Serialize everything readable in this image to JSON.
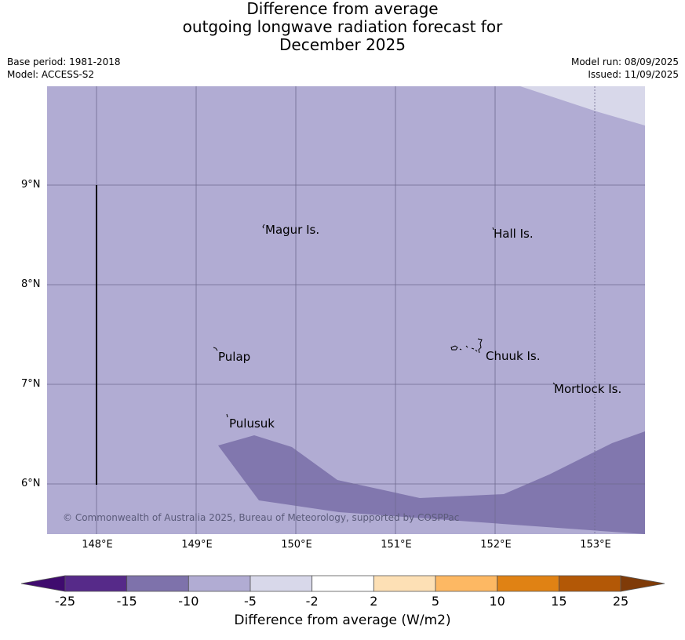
{
  "title": {
    "line1": "Difference from average",
    "line2": "outgoing longwave radiation forecast for",
    "line3": "December 2025"
  },
  "meta": {
    "base_period": "Base period: 1981-2018",
    "model": "Model: ACCESS-S2",
    "model_run": "Model run: 08/09/2025",
    "issued": "Issued: 11/09/2025"
  },
  "map": {
    "background_color": "#b1acd3",
    "lat_labels": [
      "9°N",
      "8°N",
      "7°N",
      "6°N"
    ],
    "lon_labels": [
      "148°E",
      "149°E",
      "150°E",
      "151°E",
      "152°E",
      "153°E"
    ],
    "places": [
      "Magur Is.",
      "Hall Is.",
      "Pulap",
      "Chuuk Is.",
      "Mortlock Is.",
      "Pulusuk"
    ],
    "copyright": "© Commonwealth of Australia 2025, Bureau of Meteorology, supported by COSPPac"
  },
  "colorbar": {
    "ticks": [
      "-25",
      "-15",
      "-10",
      "-5",
      "-2",
      "2",
      "5",
      "10",
      "15",
      "25"
    ],
    "colors": [
      "#3f0b6e",
      "#562a89",
      "#7e72ab",
      "#b1acd3",
      "#d8d8ea",
      "#ffffff",
      "#fde0b5",
      "#fdb863",
      "#e08214",
      "#b35806",
      "#7f3b08"
    ],
    "label": "Difference from average (W/m2)"
  }
}
